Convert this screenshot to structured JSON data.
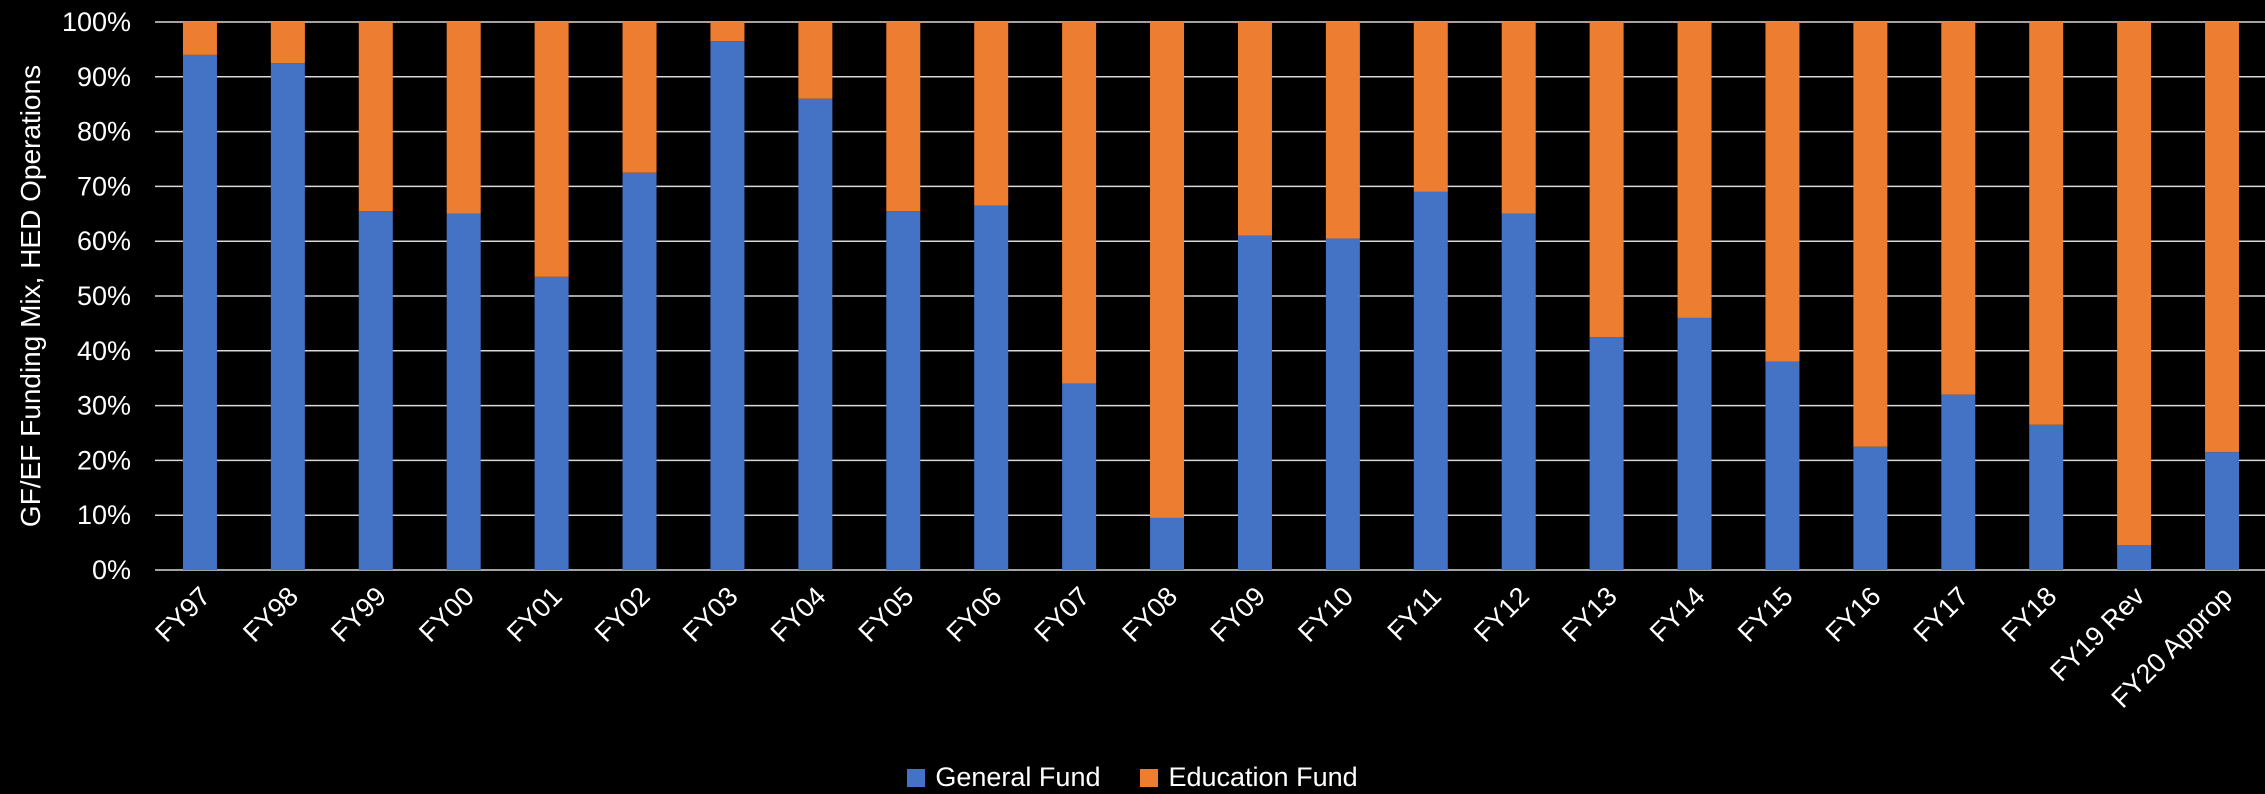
{
  "chart_data": {
    "type": "bar",
    "stacked": true,
    "categories": [
      "FY97",
      "FY98",
      "FY99",
      "FY00",
      "FY01",
      "FY02",
      "FY03",
      "FY04",
      "FY05",
      "FY06",
      "FY07",
      "FY08",
      "FY09",
      "FY10",
      "FY11",
      "FY12",
      "FY13",
      "FY14",
      "FY15",
      "FY16",
      "FY17",
      "FY18",
      "FY19 Rev",
      "FY20 Approp"
    ],
    "series": [
      {
        "name": "General Fund",
        "color": "#4472c4",
        "values": [
          94,
          92.5,
          65.5,
          65,
          53.5,
          72.5,
          96.5,
          86,
          65.5,
          66.5,
          34,
          9.5,
          61,
          60.5,
          69,
          65,
          42.5,
          46,
          38,
          22.5,
          32,
          26.5,
          4.5,
          21.5
        ]
      },
      {
        "name": "Education Fund",
        "color": "#ed7d31",
        "values": [
          6,
          7.5,
          34.5,
          35,
          46.5,
          27.5,
          3.5,
          14,
          34.5,
          33.5,
          66,
          90.5,
          39,
          39.5,
          31,
          35,
          57.5,
          54,
          62,
          77.5,
          68,
          73.5,
          95.5,
          78.5
        ]
      }
    ],
    "ylabel": "GF/EF Funding Mix, HED Operations",
    "xlabel": "",
    "ylim": [
      0,
      100
    ],
    "yticks": [
      "0%",
      "10%",
      "20%",
      "30%",
      "40%",
      "50%",
      "60%",
      "70%",
      "80%",
      "90%",
      "100%"
    ],
    "grid": true,
    "legend_position": "bottom",
    "background": "#000000",
    "gridline_color": "#d9d9d9"
  }
}
